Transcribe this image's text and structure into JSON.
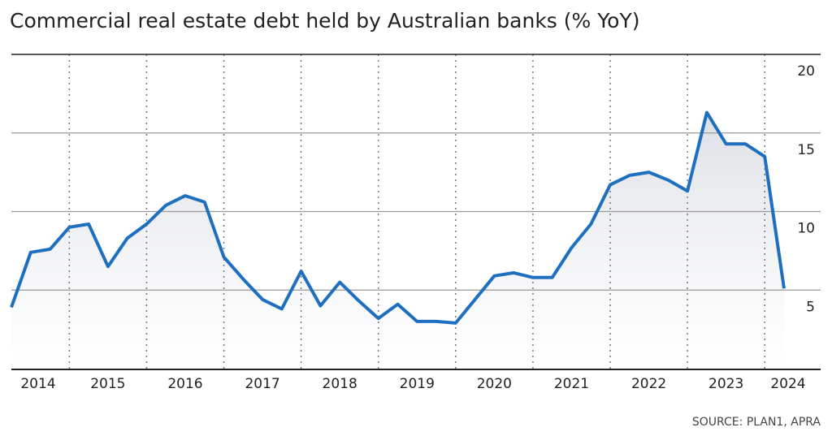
{
  "chart_data": {
    "type": "line",
    "title": "Commercial real estate debt held by Australian banks (% YoY)",
    "source": "SOURCE: PLAN1, APRA",
    "x": [
      2014.25,
      2014.5,
      2014.75,
      2015,
      2015.25,
      2015.5,
      2015.75,
      2016,
      2016.25,
      2016.5,
      2016.75,
      2017,
      2017.25,
      2017.5,
      2017.75,
      2018,
      2018.25,
      2018.5,
      2018.75,
      2019,
      2019.25,
      2019.5,
      2019.75,
      2020,
      2020.25,
      2020.5,
      2020.75,
      2021,
      2021.25,
      2021.5,
      2021.75,
      2022,
      2022.25,
      2022.5,
      2022.75,
      2023,
      2023.25,
      2023.5,
      2023.75,
      2024,
      2024.25
    ],
    "series": [
      {
        "name": "Commercial real estate debt",
        "color": "#1f6fc0",
        "values": [
          3.9,
          7.4,
          7.6,
          9.0,
          9.2,
          6.5,
          8.3,
          9.2,
          10.4,
          11.0,
          10.6,
          7.1,
          5.7,
          4.4,
          3.8,
          6.2,
          4.0,
          5.5,
          4.3,
          3.2,
          4.1,
          3.0,
          3.0,
          2.9,
          4.4,
          5.9,
          6.1,
          5.8,
          5.8,
          7.7,
          9.2,
          11.7,
          12.3,
          12.5,
          12.0,
          11.3,
          16.3,
          14.3,
          14.3,
          13.5,
          5.1
        ]
      }
    ],
    "xlim": [
      2014.25,
      2024.25
    ],
    "xticks": [
      2015,
      2016,
      2017,
      2018,
      2019,
      2020,
      2021,
      2022,
      2023,
      2024
    ],
    "x_labels": [
      2014,
      2015,
      2016,
      2017,
      2018,
      2019,
      2020,
      2021,
      2022,
      2023,
      2024
    ],
    "ylim": [
      0,
      20
    ],
    "yticks": [
      5,
      10,
      15,
      20
    ],
    "grid": true
  }
}
